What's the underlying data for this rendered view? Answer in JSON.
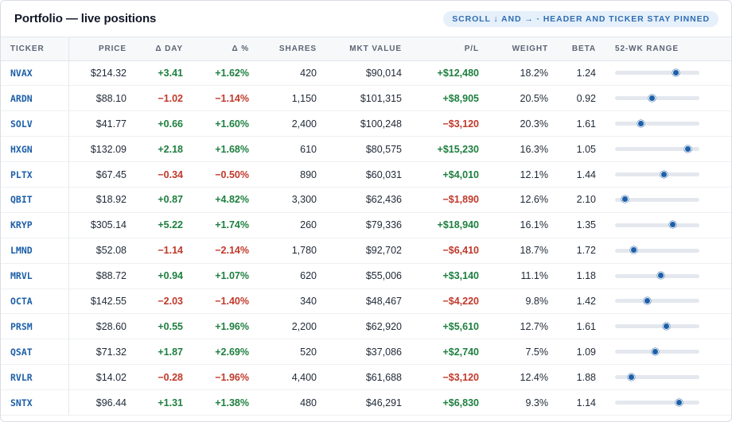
{
  "header": {
    "title": "Portfolio — live positions",
    "hint": "Scroll ↓ and → · header and ticker stay pinned"
  },
  "columns": {
    "ticker": "Ticker",
    "price": "Price",
    "day": "Δ Day",
    "pct": "Δ %",
    "shares": "Shares",
    "mkt": "Mkt Value",
    "pl": "P/L",
    "weight": "Weight",
    "beta": "Beta",
    "range": "52-wk Range"
  },
  "colors": {
    "positive": "#1e7f3f",
    "negative": "#c0392b",
    "accent": "#1d5fa8"
  },
  "rows": [
    {
      "ticker": "NVAX",
      "price": "$214.32",
      "day": "+3.41",
      "pct": "+1.62%",
      "shares": "420",
      "mkt": "$90,014",
      "pl": "+$12,480",
      "weight": "18.2%",
      "beta": "1.24",
      "range_pos": 0.72
    },
    {
      "ticker": "ARDN",
      "price": "$88.10",
      "day": "−1.02",
      "pct": "−1.14%",
      "shares": "1,150",
      "mkt": "$101,315",
      "pl": "+$8,905",
      "weight": "20.5%",
      "beta": "0.92",
      "range_pos": 0.44
    },
    {
      "ticker": "SOLV",
      "price": "$41.77",
      "day": "+0.66",
      "pct": "+1.60%",
      "shares": "2,400",
      "mkt": "$100,248",
      "pl": "−$3,120",
      "weight": "20.3%",
      "beta": "1.61",
      "range_pos": 0.31
    },
    {
      "ticker": "HXGN",
      "price": "$132.09",
      "day": "+2.18",
      "pct": "+1.68%",
      "shares": "610",
      "mkt": "$80,575",
      "pl": "+$15,230",
      "weight": "16.3%",
      "beta": "1.05",
      "range_pos": 0.86
    },
    {
      "ticker": "PLTX",
      "price": "$67.45",
      "day": "−0.34",
      "pct": "−0.50%",
      "shares": "890",
      "mkt": "$60,031",
      "pl": "+$4,010",
      "weight": "12.1%",
      "beta": "1.44",
      "range_pos": 0.58
    },
    {
      "ticker": "QBIT",
      "price": "$18.92",
      "day": "+0.87",
      "pct": "+4.82%",
      "shares": "3,300",
      "mkt": "$62,436",
      "pl": "−$1,890",
      "weight": "12.6%",
      "beta": "2.10",
      "range_pos": 0.12
    },
    {
      "ticker": "KRYP",
      "price": "$305.14",
      "day": "+5.22",
      "pct": "+1.74%",
      "shares": "260",
      "mkt": "$79,336",
      "pl": "+$18,940",
      "weight": "16.1%",
      "beta": "1.35",
      "range_pos": 0.68
    },
    {
      "ticker": "LMND",
      "price": "$52.08",
      "day": "−1.14",
      "pct": "−2.14%",
      "shares": "1,780",
      "mkt": "$92,702",
      "pl": "−$6,410",
      "weight": "18.7%",
      "beta": "1.72",
      "range_pos": 0.22
    },
    {
      "ticker": "MRVL",
      "price": "$88.72",
      "day": "+0.94",
      "pct": "+1.07%",
      "shares": "620",
      "mkt": "$55,006",
      "pl": "+$3,140",
      "weight": "11.1%",
      "beta": "1.18",
      "range_pos": 0.54
    },
    {
      "ticker": "OCTA",
      "price": "$142.55",
      "day": "−2.03",
      "pct": "−1.40%",
      "shares": "340",
      "mkt": "$48,467",
      "pl": "−$4,220",
      "weight": "9.8%",
      "beta": "1.42",
      "range_pos": 0.38
    },
    {
      "ticker": "PRSM",
      "price": "$28.60",
      "day": "+0.55",
      "pct": "+1.96%",
      "shares": "2,200",
      "mkt": "$62,920",
      "pl": "+$5,610",
      "weight": "12.7%",
      "beta": "1.61",
      "range_pos": 0.61
    },
    {
      "ticker": "QSAT",
      "price": "$71.32",
      "day": "+1.87",
      "pct": "+2.69%",
      "shares": "520",
      "mkt": "$37,086",
      "pl": "+$2,740",
      "weight": "7.5%",
      "beta": "1.09",
      "range_pos": 0.48
    },
    {
      "ticker": "RVLR",
      "price": "$14.02",
      "day": "−0.28",
      "pct": "−1.96%",
      "shares": "4,400",
      "mkt": "$61,688",
      "pl": "−$3,120",
      "weight": "12.4%",
      "beta": "1.88",
      "range_pos": 0.19
    },
    {
      "ticker": "SNTX",
      "price": "$96.44",
      "day": "+1.31",
      "pct": "+1.38%",
      "shares": "480",
      "mkt": "$46,291",
      "pl": "+$6,830",
      "weight": "9.3%",
      "beta": "1.14",
      "range_pos": 0.76
    }
  ]
}
